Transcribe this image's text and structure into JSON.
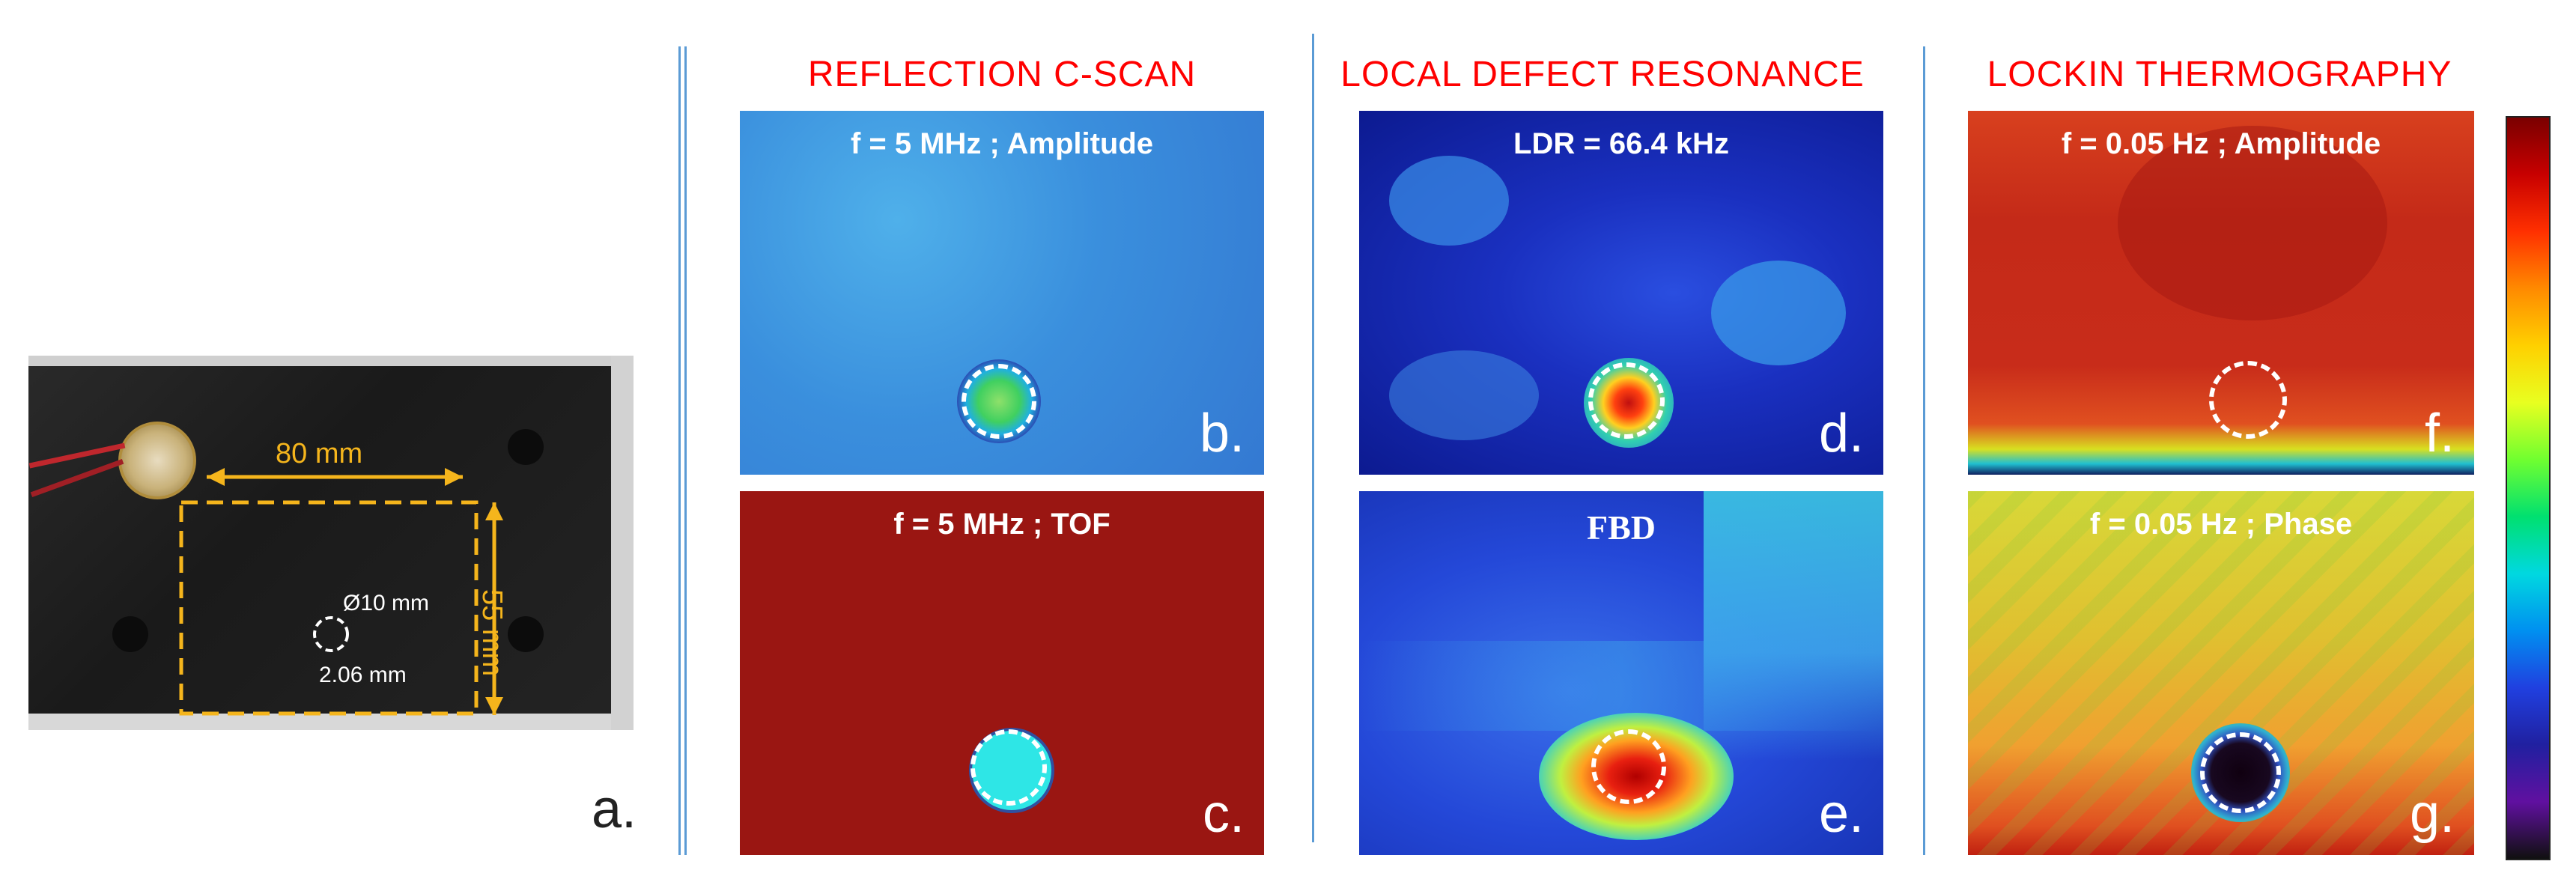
{
  "sections": {
    "reflection": "REFLECTION C-SCAN",
    "ldr": "LOCAL DEFECT RESONANCE",
    "thermo": "LOCKIN THERMOGRAPHY"
  },
  "photo": {
    "width_label": "80 mm",
    "height_label": "55 mm",
    "diameter_label": "Ø10 mm",
    "depth_label": "2.06 mm",
    "panel_label": "a."
  },
  "panels": {
    "b": {
      "title": "f = 5 MHz ; Amplitude",
      "label": "b."
    },
    "c": {
      "title": "f = 5 MHz ; TOF",
      "label": "c."
    },
    "d": {
      "title": "LDR = 66.4 kHz",
      "label": "d."
    },
    "e": {
      "title": "FBD",
      "label": "e."
    },
    "f": {
      "title": "f = 0.05 Hz ; Amplitude",
      "label": "f."
    },
    "g": {
      "title": "f = 0.05 Hz ; Phase",
      "label": "g."
    }
  },
  "colorbar": {
    "colors": [
      "#7a0000",
      "#c80000",
      "#ff3000",
      "#ff8a00",
      "#ffd000",
      "#e8ff20",
      "#70ff30",
      "#00e070",
      "#00d8e0",
      "#0090f0",
      "#2040e0",
      "#2020a0",
      "#6010a0",
      "#101010"
    ]
  }
}
